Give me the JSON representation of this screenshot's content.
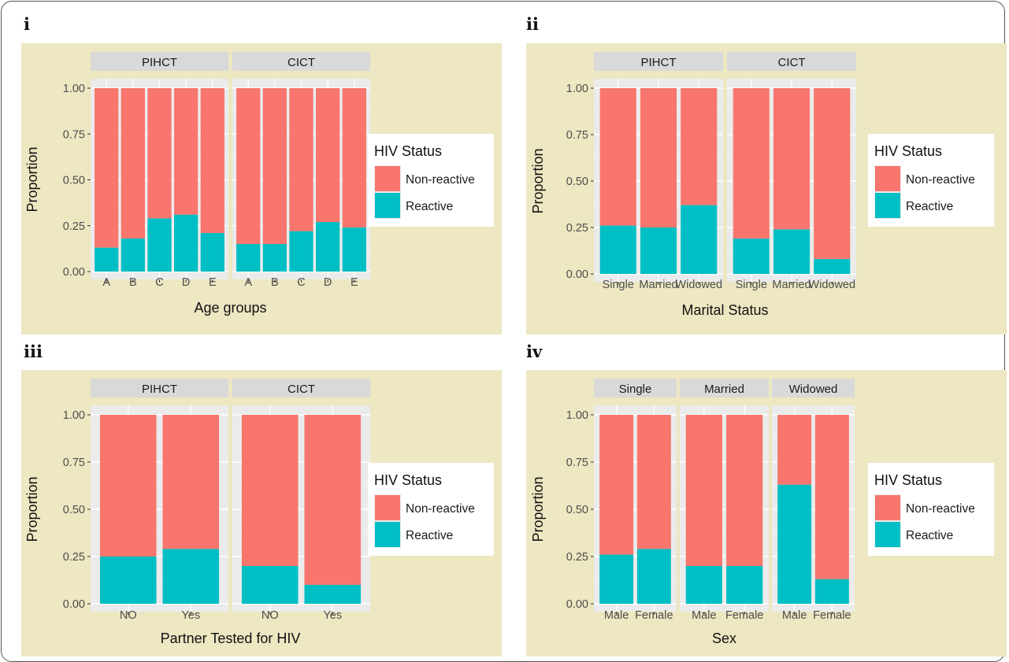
{
  "panels": [
    {
      "id": "i",
      "label": "i"
    },
    {
      "id": "ii",
      "label": "ii"
    },
    {
      "id": "iii",
      "label": "iii"
    },
    {
      "id": "iv",
      "label": "iv"
    }
  ],
  "colors": {
    "panel_background": "#ede7c2",
    "plot_background": "#ebebeb",
    "strip_background": "#d9d9d9",
    "non_reactive": "#f8766d",
    "reactive": "#00bfc4",
    "grid_major": "#ffffff",
    "axis_text": "#4d4d4d"
  },
  "chart_data": [
    {
      "type": "bar",
      "stacked": true,
      "panel": "i",
      "xlabel": "Age groups",
      "ylabel": "Proportion",
      "ylim": [
        0,
        1
      ],
      "yticks": [
        "0.00",
        "0.25",
        "0.50",
        "0.75",
        "1.00"
      ],
      "legend": {
        "title": "HIV Status",
        "position": "right",
        "entries": [
          "Non-reactive",
          "Reactive"
        ]
      },
      "facets": [
        {
          "name": "PIHCT",
          "categories": [
            "A",
            "B",
            "C",
            "D",
            "E"
          ],
          "reactive": [
            0.13,
            0.18,
            0.29,
            0.31,
            0.21
          ]
        },
        {
          "name": "CICT",
          "categories": [
            "A",
            "B",
            "C",
            "D",
            "E"
          ],
          "reactive": [
            0.15,
            0.15,
            0.22,
            0.27,
            0.24
          ]
        }
      ]
    },
    {
      "type": "bar",
      "stacked": true,
      "panel": "ii",
      "xlabel": "Marital Status",
      "ylabel": "Proportion",
      "ylim": [
        0,
        1
      ],
      "yticks": [
        "0.00",
        "0.25",
        "0.50",
        "0.75",
        "1.00"
      ],
      "legend": {
        "title": "HIV Status",
        "position": "right",
        "entries": [
          "Non-reactive",
          "Reactive"
        ]
      },
      "facets": [
        {
          "name": "PIHCT",
          "categories": [
            "Single",
            "Married",
            "Widowed"
          ],
          "reactive": [
            0.26,
            0.25,
            0.37
          ]
        },
        {
          "name": "CICT",
          "categories": [
            "Single",
            "Married",
            "Widowed"
          ],
          "reactive": [
            0.19,
            0.24,
            0.08
          ]
        }
      ]
    },
    {
      "type": "bar",
      "stacked": true,
      "panel": "iii",
      "xlabel": "Partner Tested for HIV",
      "ylabel": "Proportion",
      "ylim": [
        0,
        1
      ],
      "yticks": [
        "0.00",
        "0.25",
        "0.50",
        "0.75",
        "1.00"
      ],
      "legend": {
        "title": "HIV Status",
        "position": "right",
        "entries": [
          "Non-reactive",
          "Reactive"
        ]
      },
      "facets": [
        {
          "name": "PIHCT",
          "categories": [
            "NO",
            "Yes"
          ],
          "reactive": [
            0.25,
            0.29
          ]
        },
        {
          "name": "CICT",
          "categories": [
            "NO",
            "Yes"
          ],
          "reactive": [
            0.2,
            0.1
          ]
        }
      ]
    },
    {
      "type": "bar",
      "stacked": true,
      "panel": "iv",
      "xlabel": "Sex",
      "ylabel": "Proportion",
      "ylim": [
        0,
        1
      ],
      "yticks": [
        "0.00",
        "0.25",
        "0.50",
        "0.75",
        "1.00"
      ],
      "legend": {
        "title": "HIV Status",
        "position": "right",
        "entries": [
          "Non-reactive",
          "Reactive"
        ]
      },
      "facets": [
        {
          "name": "Single",
          "categories": [
            "Male",
            "Female"
          ],
          "reactive": [
            0.26,
            0.29
          ]
        },
        {
          "name": "Married",
          "categories": [
            "Male",
            "Female"
          ],
          "reactive": [
            0.2,
            0.2
          ]
        },
        {
          "name": "Widowed",
          "categories": [
            "Male",
            "Female"
          ],
          "reactive": [
            0.63,
            0.13
          ]
        }
      ]
    }
  ]
}
